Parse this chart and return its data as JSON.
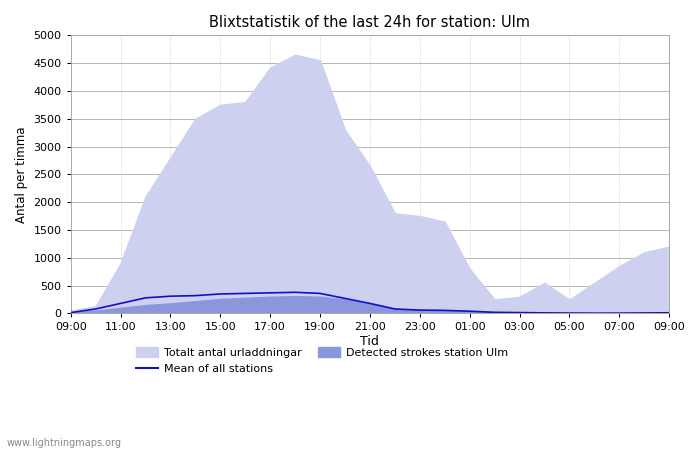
{
  "title": "Blixtstatistik of the last 24h for station: Ulm",
  "xlabel": "Tid",
  "ylabel": "Antal per timma",
  "ylim": [
    0,
    5000
  ],
  "yticks": [
    0,
    500,
    1000,
    1500,
    2000,
    2500,
    3000,
    3500,
    4000,
    4500,
    5000
  ],
  "x_labels": [
    "09:00",
    "11:00",
    "13:00",
    "15:00",
    "17:00",
    "19:00",
    "21:00",
    "23:00",
    "01:00",
    "03:00",
    "05:00",
    "07:00",
    "09:00"
  ],
  "background_color": "#ffffff",
  "fill_color_total": "#cdd0ee",
  "fill_color_station": "#8b96dd",
  "line_color": "#1010cc",
  "watermark": "www.lightningmaps.org",
  "legend": {
    "total": "Totalt antal urladdningar",
    "station": "Detected strokes station Ulm",
    "mean": "Mean of all stations"
  },
  "total_y": [
    50,
    130,
    900,
    2100,
    2800,
    3500,
    3750,
    3800,
    4420,
    4650,
    4550,
    3300,
    2650,
    1800,
    1750,
    1650,
    800,
    250,
    300,
    550,
    250,
    550,
    850,
    1100,
    1200
  ],
  "station_y": [
    20,
    50,
    100,
    150,
    180,
    220,
    260,
    280,
    300,
    310,
    300,
    250,
    180,
    80,
    60,
    50,
    35,
    15,
    10,
    8,
    5,
    5,
    10,
    15,
    20
  ],
  "mean_y": [
    15,
    80,
    180,
    280,
    310,
    320,
    350,
    360,
    370,
    380,
    360,
    270,
    180,
    80,
    60,
    55,
    40,
    20,
    15,
    10,
    7,
    5,
    5,
    8,
    12
  ]
}
